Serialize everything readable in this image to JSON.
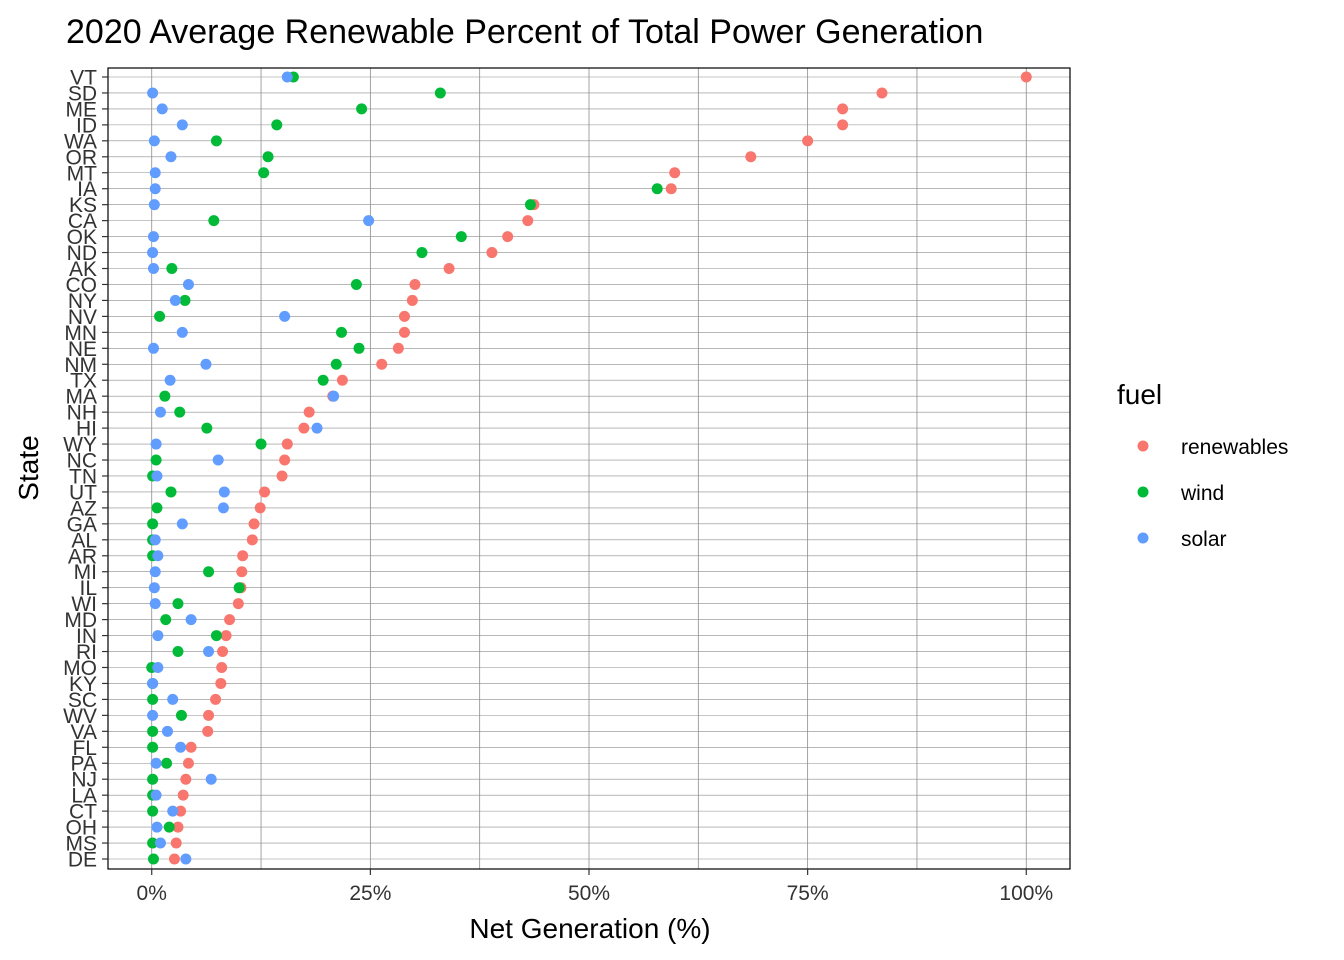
{
  "chart_data": {
    "type": "scatter",
    "title": "2020 Average Renewable Percent of Total Power Generation",
    "xlabel": "Net Generation (%)",
    "ylabel": "State",
    "xlim": [
      -5,
      105
    ],
    "xticks": [
      0,
      25,
      50,
      75,
      100
    ],
    "xtick_labels": [
      "0%",
      "25%",
      "50%",
      "75%",
      "100%"
    ],
    "grid": true,
    "legend": {
      "title": "fuel",
      "position": "right"
    },
    "categories": [
      "VT",
      "SD",
      "ME",
      "ID",
      "WA",
      "OR",
      "MT",
      "IA",
      "KS",
      "CA",
      "OK",
      "ND",
      "AK",
      "CO",
      "NY",
      "NV",
      "MN",
      "NE",
      "NM",
      "TX",
      "MA",
      "NH",
      "HI",
      "WY",
      "NC",
      "TN",
      "UT",
      "AZ",
      "GA",
      "AL",
      "AR",
      "MI",
      "IL",
      "WI",
      "MD",
      "IN",
      "RI",
      "MO",
      "KY",
      "SC",
      "WV",
      "VA",
      "FL",
      "PA",
      "NJ",
      "LA",
      "CT",
      "OH",
      "MS",
      "DE"
    ],
    "series": [
      {
        "name": "renewables",
        "color": "#F8766D",
        "values": [
          100,
          83.5,
          79,
          79,
          75,
          68.5,
          59.8,
          59.4,
          43.7,
          43,
          40.7,
          38.9,
          34,
          30.1,
          29.8,
          28.9,
          28.9,
          28.2,
          26.3,
          21.8,
          20.7,
          18,
          17.4,
          15.5,
          15.2,
          14.9,
          12.9,
          12.4,
          11.7,
          11.5,
          10.4,
          10.3,
          10.2,
          9.9,
          8.9,
          8.5,
          8.1,
          8.0,
          7.9,
          7.3,
          6.5,
          6.4,
          4.5,
          4.2,
          3.9,
          3.6,
          3.3,
          3.0,
          2.8,
          2.6
        ]
      },
      {
        "name": "wind",
        "color": "#00BA38",
        "values": [
          16.2,
          33,
          24,
          14.3,
          7.4,
          13.3,
          12.8,
          57.8,
          43.3,
          7.1,
          35.4,
          30.9,
          2.3,
          23.4,
          3.8,
          0.9,
          21.7,
          23.7,
          21.1,
          19.6,
          1.5,
          3.2,
          6.3,
          12.5,
          0.5,
          0.1,
          2.2,
          0.6,
          0.1,
          0.1,
          0.1,
          6.5,
          10.0,
          3.0,
          1.6,
          7.4,
          3.0,
          0.0,
          0.1,
          0.1,
          3.4,
          0.1,
          0.1,
          1.7,
          0.1,
          0.1,
          0.1,
          2.0,
          0.1,
          0.2
        ]
      },
      {
        "name": "solar",
        "color": "#619CFF",
        "values": [
          15.5,
          0.1,
          1.2,
          3.5,
          0.3,
          2.2,
          0.4,
          0.4,
          0.3,
          24.8,
          0.2,
          0.1,
          0.2,
          4.2,
          2.7,
          15.2,
          3.5,
          0.2,
          6.2,
          2.1,
          20.8,
          1.0,
          18.9,
          0.5,
          7.6,
          0.6,
          8.3,
          8.2,
          3.5,
          0.4,
          0.7,
          0.4,
          0.3,
          0.4,
          4.5,
          0.7,
          6.5,
          0.7,
          0.1,
          2.4,
          0.1,
          1.8,
          3.3,
          0.5,
          6.8,
          0.5,
          2.4,
          0.6,
          1.0,
          3.9
        ]
      }
    ]
  }
}
